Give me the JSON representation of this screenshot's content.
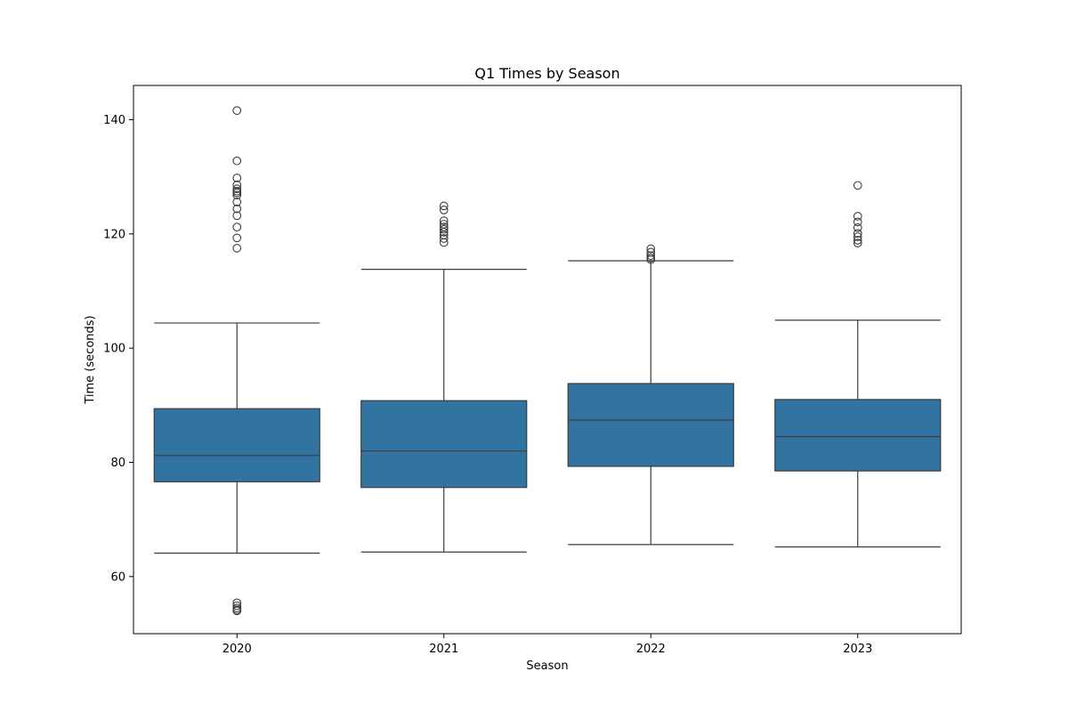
{
  "chart_data": {
    "type": "boxplot",
    "title": "Q1 Times by Season",
    "xlabel": "Season",
    "ylabel": "Time (seconds)",
    "ylim": [
      50,
      146
    ],
    "yticks": [
      60,
      80,
      100,
      120,
      140
    ],
    "grid": false,
    "legend": "none",
    "box_color": "#3274a1",
    "line_color": "#3c3c3c",
    "categories": [
      "2020",
      "2021",
      "2022",
      "2023"
    ],
    "boxes": [
      {
        "category": "2020",
        "whisker_low": 64.1,
        "q1": 76.6,
        "median": 81.2,
        "q3": 89.4,
        "whisker_high": 104.4,
        "outliers": [
          141.6,
          132.8,
          129.8,
          128.6,
          127.9,
          127.5,
          127.2,
          126.8,
          125.6,
          124.4,
          123.2,
          121.2,
          119.3,
          117.5,
          55.4,
          54.9,
          54.5,
          54.2,
          54.0
        ]
      },
      {
        "category": "2021",
        "whisker_low": 64.3,
        "q1": 75.6,
        "median": 82.0,
        "q3": 90.8,
        "whisker_high": 113.8,
        "outliers": [
          124.9,
          124.2,
          122.3,
          121.7,
          121.2,
          120.8,
          120.3,
          119.8,
          119.2,
          118.5
        ]
      },
      {
        "category": "2022",
        "whisker_low": 65.6,
        "q1": 79.3,
        "median": 87.4,
        "q3": 93.8,
        "whisker_high": 115.3,
        "outliers": [
          117.4,
          116.8,
          116.2,
          115.8,
          115.5
        ]
      },
      {
        "category": "2023",
        "whisker_low": 65.2,
        "q1": 78.5,
        "median": 84.5,
        "q3": 91.0,
        "whisker_high": 104.9,
        "outliers": [
          128.5,
          123.1,
          122.1,
          121.1,
          120.1,
          119.5,
          118.9,
          118.4
        ]
      }
    ]
  }
}
